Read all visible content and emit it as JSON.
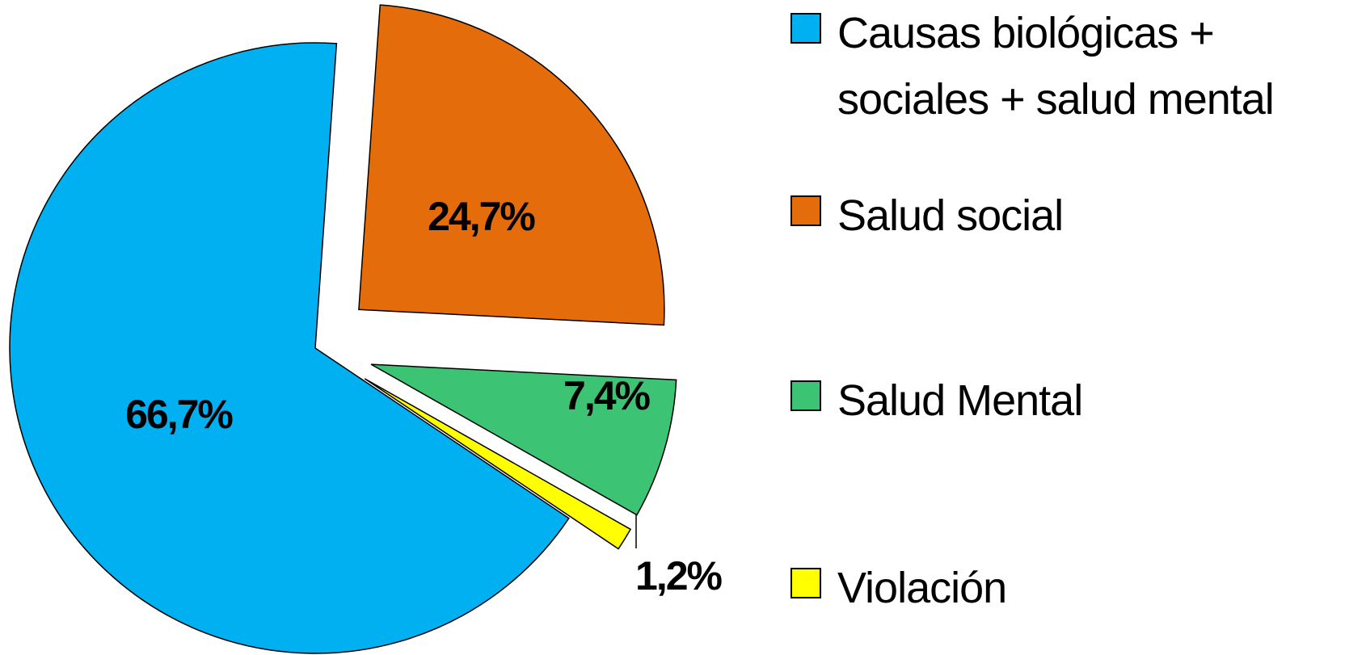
{
  "chart_data": {
    "type": "pie",
    "categories": [
      "Causas biológicas + sociales + salud mental",
      "Salud social",
      "Salud Mental",
      "Violación"
    ],
    "values": [
      66.7,
      24.7,
      7.4,
      1.2
    ],
    "value_labels": [
      "66,7%",
      "24,7%",
      "7,4%",
      "1,2%"
    ],
    "colors": [
      "#00b0f0",
      "#e46c0a",
      "#3cc373",
      "#ffff00"
    ]
  }
}
